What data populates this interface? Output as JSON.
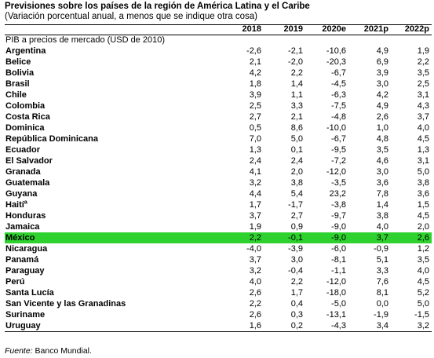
{
  "title": "Previsiones sobre los países de la región de América Latina y el Caribe",
  "subtitle": "(Variación porcentual anual, a menos que se indique otra cosa)",
  "table": {
    "columns": [
      "2018",
      "2019",
      "2020e",
      "2021p",
      "2022p"
    ],
    "section_label": "PIB a precios de mercado (USD de 2010)",
    "rows": [
      {
        "country": "Argentina",
        "values": [
          "-2,6",
          "-2,1",
          "-10,6",
          "4,9",
          "1,9"
        ]
      },
      {
        "country": "Belice",
        "values": [
          "2,1",
          "-2,0",
          "-20,3",
          "6,9",
          "2,2"
        ]
      },
      {
        "country": "Bolivia",
        "values": [
          "4,2",
          "2,2",
          "-6,7",
          "3,9",
          "3,5"
        ]
      },
      {
        "country": "Brasil",
        "values": [
          "1,8",
          "1,4",
          "-4,5",
          "3,0",
          "2,5"
        ]
      },
      {
        "country": "Chile",
        "values": [
          "3,9",
          "1,1",
          "-6,3",
          "4,2",
          "3,1"
        ]
      },
      {
        "country": "Colombia",
        "values": [
          "2,5",
          "3,3",
          "-7,5",
          "4,9",
          "4,3"
        ]
      },
      {
        "country": "Costa Rica",
        "values": [
          "2,7",
          "2,1",
          "-4,8",
          "2,6",
          "3,7"
        ]
      },
      {
        "country": "Dominica",
        "values": [
          "0,5",
          "8,6",
          "-10,0",
          "1,0",
          "4,0"
        ]
      },
      {
        "country": "República Dominicana",
        "values": [
          "7,0",
          "5,0",
          "-6,7",
          "4,8",
          "4,5"
        ]
      },
      {
        "country": "Ecuador",
        "values": [
          "1,3",
          "0,1",
          "-9,5",
          "3,5",
          "1,3"
        ]
      },
      {
        "country": "El Salvador",
        "values": [
          "2,4",
          "2,4",
          "-7,2",
          "4,6",
          "3,1"
        ]
      },
      {
        "country": "Granada",
        "values": [
          "4,1",
          "2,0",
          "-12,0",
          "3,0",
          "5,0"
        ]
      },
      {
        "country": "Guatemala",
        "values": [
          "3,2",
          "3,8",
          "-3,5",
          "3,6",
          "3,8"
        ]
      },
      {
        "country": "Guyana",
        "values": [
          "4,4",
          "5,4",
          "23,2",
          "7,8",
          "3,6"
        ]
      },
      {
        "country": "Haití",
        "note": "a",
        "values": [
          "1,7",
          "-1,7",
          "-3,8",
          "1,4",
          "1,5"
        ]
      },
      {
        "country": "Honduras",
        "values": [
          "3,7",
          "2,7",
          "-9,7",
          "3,8",
          "4,5"
        ]
      },
      {
        "country": "Jamaica",
        "values": [
          "1,9",
          "0,9",
          "-9,0",
          "4,0",
          "2,0"
        ]
      },
      {
        "country": "México",
        "values": [
          "2,2",
          "-0,1",
          "-9,0",
          "3,7",
          "2,6"
        ],
        "highlight": true
      },
      {
        "country": "Nicaragua",
        "values": [
          "-4,0",
          "-3,9",
          "-6,0",
          "-0,9",
          "1,2"
        ]
      },
      {
        "country": "Panamá",
        "values": [
          "3,7",
          "3,0",
          "-8,1",
          "5,1",
          "3,5"
        ]
      },
      {
        "country": "Paraguay",
        "values": [
          "3,2",
          "-0,4",
          "-1,1",
          "3,3",
          "4,0"
        ]
      },
      {
        "country": "Perú",
        "values": [
          "4,0",
          "2,2",
          "-12,0",
          "7,6",
          "4,5"
        ]
      },
      {
        "country": "Santa Lucía",
        "values": [
          "2,6",
          "1,7",
          "-18,0",
          "8,1",
          "5,2"
        ]
      },
      {
        "country": "San Vicente y las Granadinas",
        "values": [
          "2,2",
          "0,4",
          "-5,0",
          "0,0",
          "5,0"
        ]
      },
      {
        "country": "Suriname",
        "values": [
          "2,6",
          "0,3",
          "-13,1",
          "-1,9",
          "-1,5"
        ]
      },
      {
        "country": "Uruguay",
        "values": [
          "1,6",
          "0,2",
          "-4,3",
          "3,4",
          "3,2"
        ]
      }
    ]
  },
  "source": {
    "label": "Fuente:",
    "text": "Banco Mundial."
  },
  "colors": {
    "highlight": "#2ed12e"
  }
}
